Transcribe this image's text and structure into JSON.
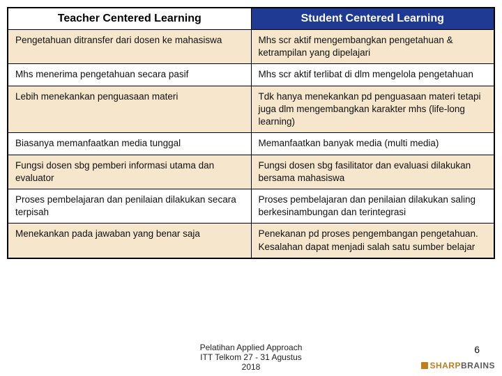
{
  "table": {
    "headers": {
      "left": "Teacher Centered Learning",
      "right": "Student Centered Learning"
    },
    "rows": [
      {
        "left": "Pengetahuan ditransfer dari dosen ke mahasiswa",
        "right": "Mhs scr aktif  mengembangkan pengetahuan & ketrampilan yang dipelajari"
      },
      {
        "left": "Mhs menerima pengetahuan secara pasif",
        "right": "Mhs scr aktif terlibat di dlm mengelola pengetahuan"
      },
      {
        "left": "Lebih menekankan penguasaan materi",
        "right": "Tdk hanya menekankan pd penguasaan materi tetapi juga dlm mengembangkan karakter mhs (life-long learning)"
      },
      {
        "left": "Biasanya memanfaatkan media tunggal",
        "right": "Memanfaatkan banyak media (multi media)"
      },
      {
        "left": "Fungsi dosen sbg pemberi informasi utama dan evaluator",
        "right": "Fungsi dosen sbg fasilitator dan evaluasi dilakukan bersama mahasiswa"
      },
      {
        "left": "Proses pembelajaran dan penilaian dilakukan secara terpisah",
        "right": "Proses pembelajaran dan penilaian dilakukan saling berkesinambungan dan terintegrasi"
      },
      {
        "left": "Menekankan pada jawaban yang benar saja",
        "right": "Penekanan pd proses pengembangan pengetahuan.  Kesalahan dapat menjadi salah satu sumber belajar"
      }
    ],
    "header_bg_left": "#ffffff",
    "header_bg_right": "#1f3a93",
    "row_odd_bg": "#f5e6cc",
    "row_even_bg": "#ffffff",
    "border_color": "#000000",
    "font_family": "Verdana",
    "header_fontsize_pt": 16,
    "cell_fontsize_pt": 13.5
  },
  "footer": {
    "line1": "Pelatihan Applied Approach",
    "line2": "ITT Telkom 27 - 31 Agustus",
    "line3": "2018"
  },
  "page_number": "6",
  "logo": {
    "part1": "SHARP",
    "part2": "BRAINS"
  },
  "colors": {
    "logo_orange": "#c07d1e",
    "logo_gray": "#5a5a5a",
    "page_bg": "#ffffff"
  }
}
